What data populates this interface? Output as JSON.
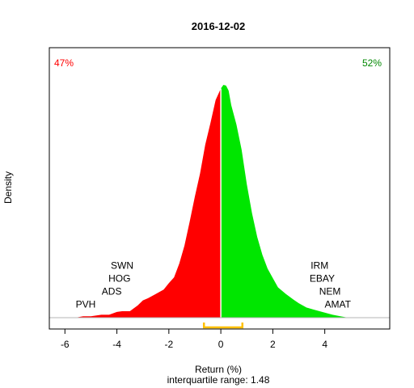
{
  "chart_data": {
    "type": "area",
    "title": "2016-12-02",
    "xlabel": "Return (%)",
    "ylabel": "Density",
    "subtitle": "interquartile range: 1.48",
    "xlim": [
      -6.6,
      6.5
    ],
    "ylim": [
      0,
      0.36
    ],
    "xticks": [
      -6,
      -4,
      -2,
      0,
      2,
      4
    ],
    "split_at": 0,
    "iqr": [
      -0.65,
      0.83
    ],
    "colors": {
      "negative": "#ff0000",
      "positive": "#00e600",
      "iqr": "#ffc000",
      "baseline": "#b4b4b4"
    },
    "pct_negative": {
      "label": "47%",
      "color": "#ff0000"
    },
    "pct_positive": {
      "label": "52%",
      "color": "#008800"
    },
    "density": {
      "x": [
        -5.6,
        -5.3,
        -5.0,
        -4.6,
        -4.3,
        -4.0,
        -3.8,
        -3.5,
        -3.2,
        -3.0,
        -2.8,
        -2.5,
        -2.2,
        -2.0,
        -1.8,
        -1.6,
        -1.4,
        -1.2,
        -1.0,
        -0.8,
        -0.6,
        -0.4,
        -0.2,
        0.0,
        0.1,
        0.2,
        0.3,
        0.4,
        0.6,
        0.8,
        1.0,
        1.2,
        1.4,
        1.6,
        1.8,
        2.0,
        2.2,
        2.5,
        2.8,
        3.0,
        3.3,
        3.6,
        4.0,
        4.3,
        4.6,
        4.9
      ],
      "y": [
        0.0,
        0.002,
        0.002,
        0.004,
        0.004,
        0.008,
        0.009,
        0.009,
        0.017,
        0.024,
        0.027,
        0.033,
        0.039,
        0.048,
        0.056,
        0.075,
        0.1,
        0.133,
        0.168,
        0.2,
        0.24,
        0.27,
        0.302,
        0.318,
        0.323,
        0.322,
        0.315,
        0.295,
        0.268,
        0.233,
        0.185,
        0.145,
        0.112,
        0.087,
        0.068,
        0.055,
        0.042,
        0.033,
        0.025,
        0.02,
        0.014,
        0.011,
        0.007,
        0.004,
        0.002,
        0.0
      ]
    },
    "annotations_left": [
      {
        "label": "PVH",
        "x": -5.2,
        "y": 0.014
      },
      {
        "label": "ADS",
        "x": -4.2,
        "y": 0.032
      },
      {
        "label": "HOG",
        "x": -3.9,
        "y": 0.05
      },
      {
        "label": "SWN",
        "x": -3.8,
        "y": 0.068
      }
    ],
    "annotations_right": [
      {
        "label": "IRM",
        "x": 3.8,
        "y": 0.068
      },
      {
        "label": "EBAY",
        "x": 3.9,
        "y": 0.05
      },
      {
        "label": "NEM",
        "x": 4.2,
        "y": 0.032
      },
      {
        "label": "AMAT",
        "x": 4.5,
        "y": 0.014
      }
    ]
  }
}
